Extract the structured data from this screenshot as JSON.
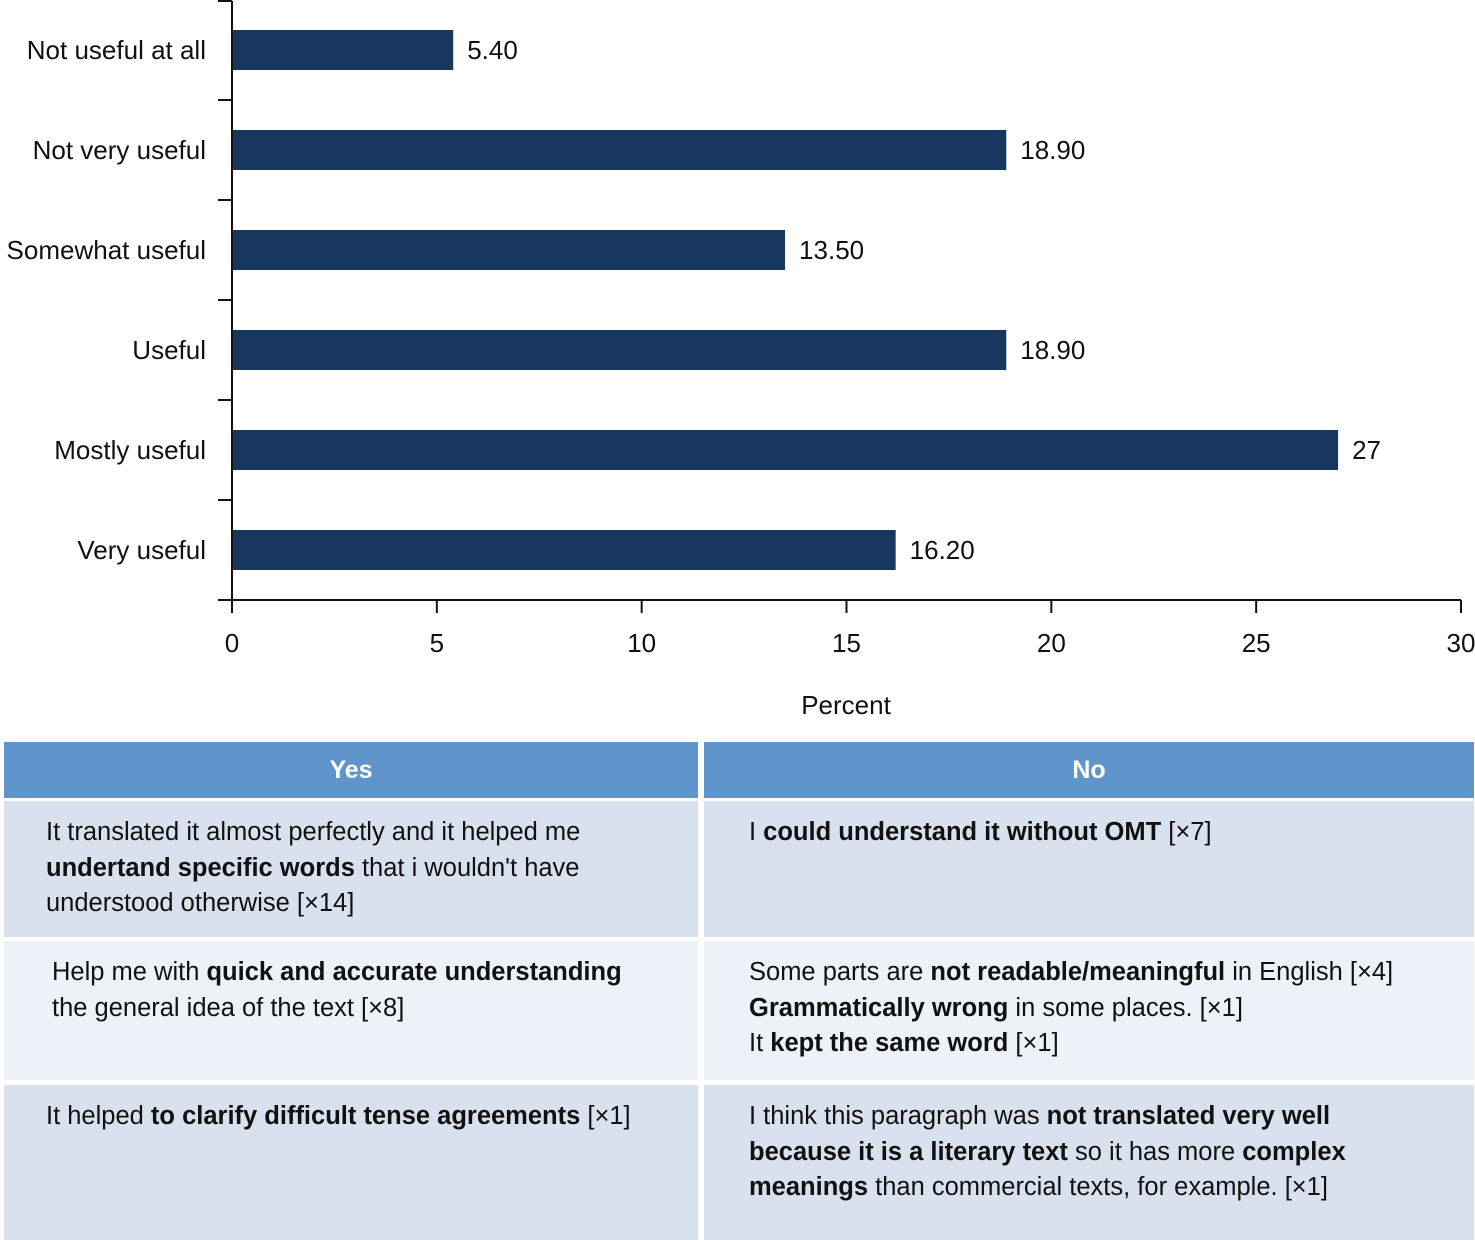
{
  "chart_data": {
    "type": "bar",
    "orientation": "horizontal",
    "categories": [
      "Not useful at all",
      "Not very useful",
      "Somewhat useful",
      "Useful",
      "Mostly useful",
      "Very useful"
    ],
    "values": [
      5.4,
      18.9,
      13.5,
      18.9,
      27,
      16.2
    ],
    "value_labels": [
      "5.40",
      "18.90",
      "13.50",
      "18.90",
      "27",
      "16.20"
    ],
    "xlabel": "Percent",
    "ylabel": "",
    "xlim": [
      0,
      30
    ],
    "xticks": [
      "0",
      "5",
      "10",
      "15",
      "20",
      "25",
      "30"
    ],
    "grid": false,
    "bar_color": "#18375e"
  },
  "table": {
    "headers": [
      "Yes",
      "No"
    ],
    "header_color": "#5f95cb",
    "rows": [
      {
        "yes": [
          [
            {
              "t": "It translated it almost perfectly and it helped me",
              "b": false
            }
          ],
          [
            {
              "t": "undertand specific words",
              "b": true
            },
            {
              "t": " that i wouldn't have",
              "b": false
            }
          ],
          [
            {
              "t": "understood otherwise [×14]",
              "b": false
            }
          ]
        ],
        "no": [
          [
            {
              "t": "I ",
              "b": false
            },
            {
              "t": "could understand it without OMT",
              "b": true
            },
            {
              "t": " [×7]",
              "b": false
            }
          ]
        ]
      },
      {
        "yes": [
          [
            {
              "t": "Help me with ",
              "b": false
            },
            {
              "t": "quick and accurate understanding",
              "b": true
            }
          ],
          [
            {
              "t": "the general idea of the text [×8]",
              "b": false
            }
          ]
        ],
        "no": [
          [
            {
              "t": "Some parts are ",
              "b": false
            },
            {
              "t": "not readable/meaningful",
              "b": true
            },
            {
              "t": " in English [×4]",
              "b": false
            }
          ],
          [
            {
              "t": "Grammatically wrong",
              "b": true
            },
            {
              "t": " in some places. [×1]",
              "b": false
            }
          ],
          [
            {
              "t": "It ",
              "b": false
            },
            {
              "t": "kept the same word",
              "b": true
            },
            {
              "t": " [×1]",
              "b": false
            }
          ]
        ]
      },
      {
        "yes": [
          [
            {
              "t": "It helped ",
              "b": false
            },
            {
              "t": "to clarify difficult tense agreements",
              "b": true
            },
            {
              "t": " [×1]",
              "b": false
            }
          ]
        ],
        "no": [
          [
            {
              "t": "I think this paragraph was ",
              "b": false
            },
            {
              "t": "not translated very well",
              "b": true
            }
          ],
          [
            {
              "t": "because it is a literary text",
              "b": true
            },
            {
              "t": " so it has more ",
              "b": false
            },
            {
              "t": "complex",
              "b": true
            }
          ],
          [
            {
              "t": "meanings",
              "b": true
            },
            {
              "t": " than commercial texts, for example. [×1]",
              "b": false
            }
          ]
        ]
      }
    ]
  }
}
